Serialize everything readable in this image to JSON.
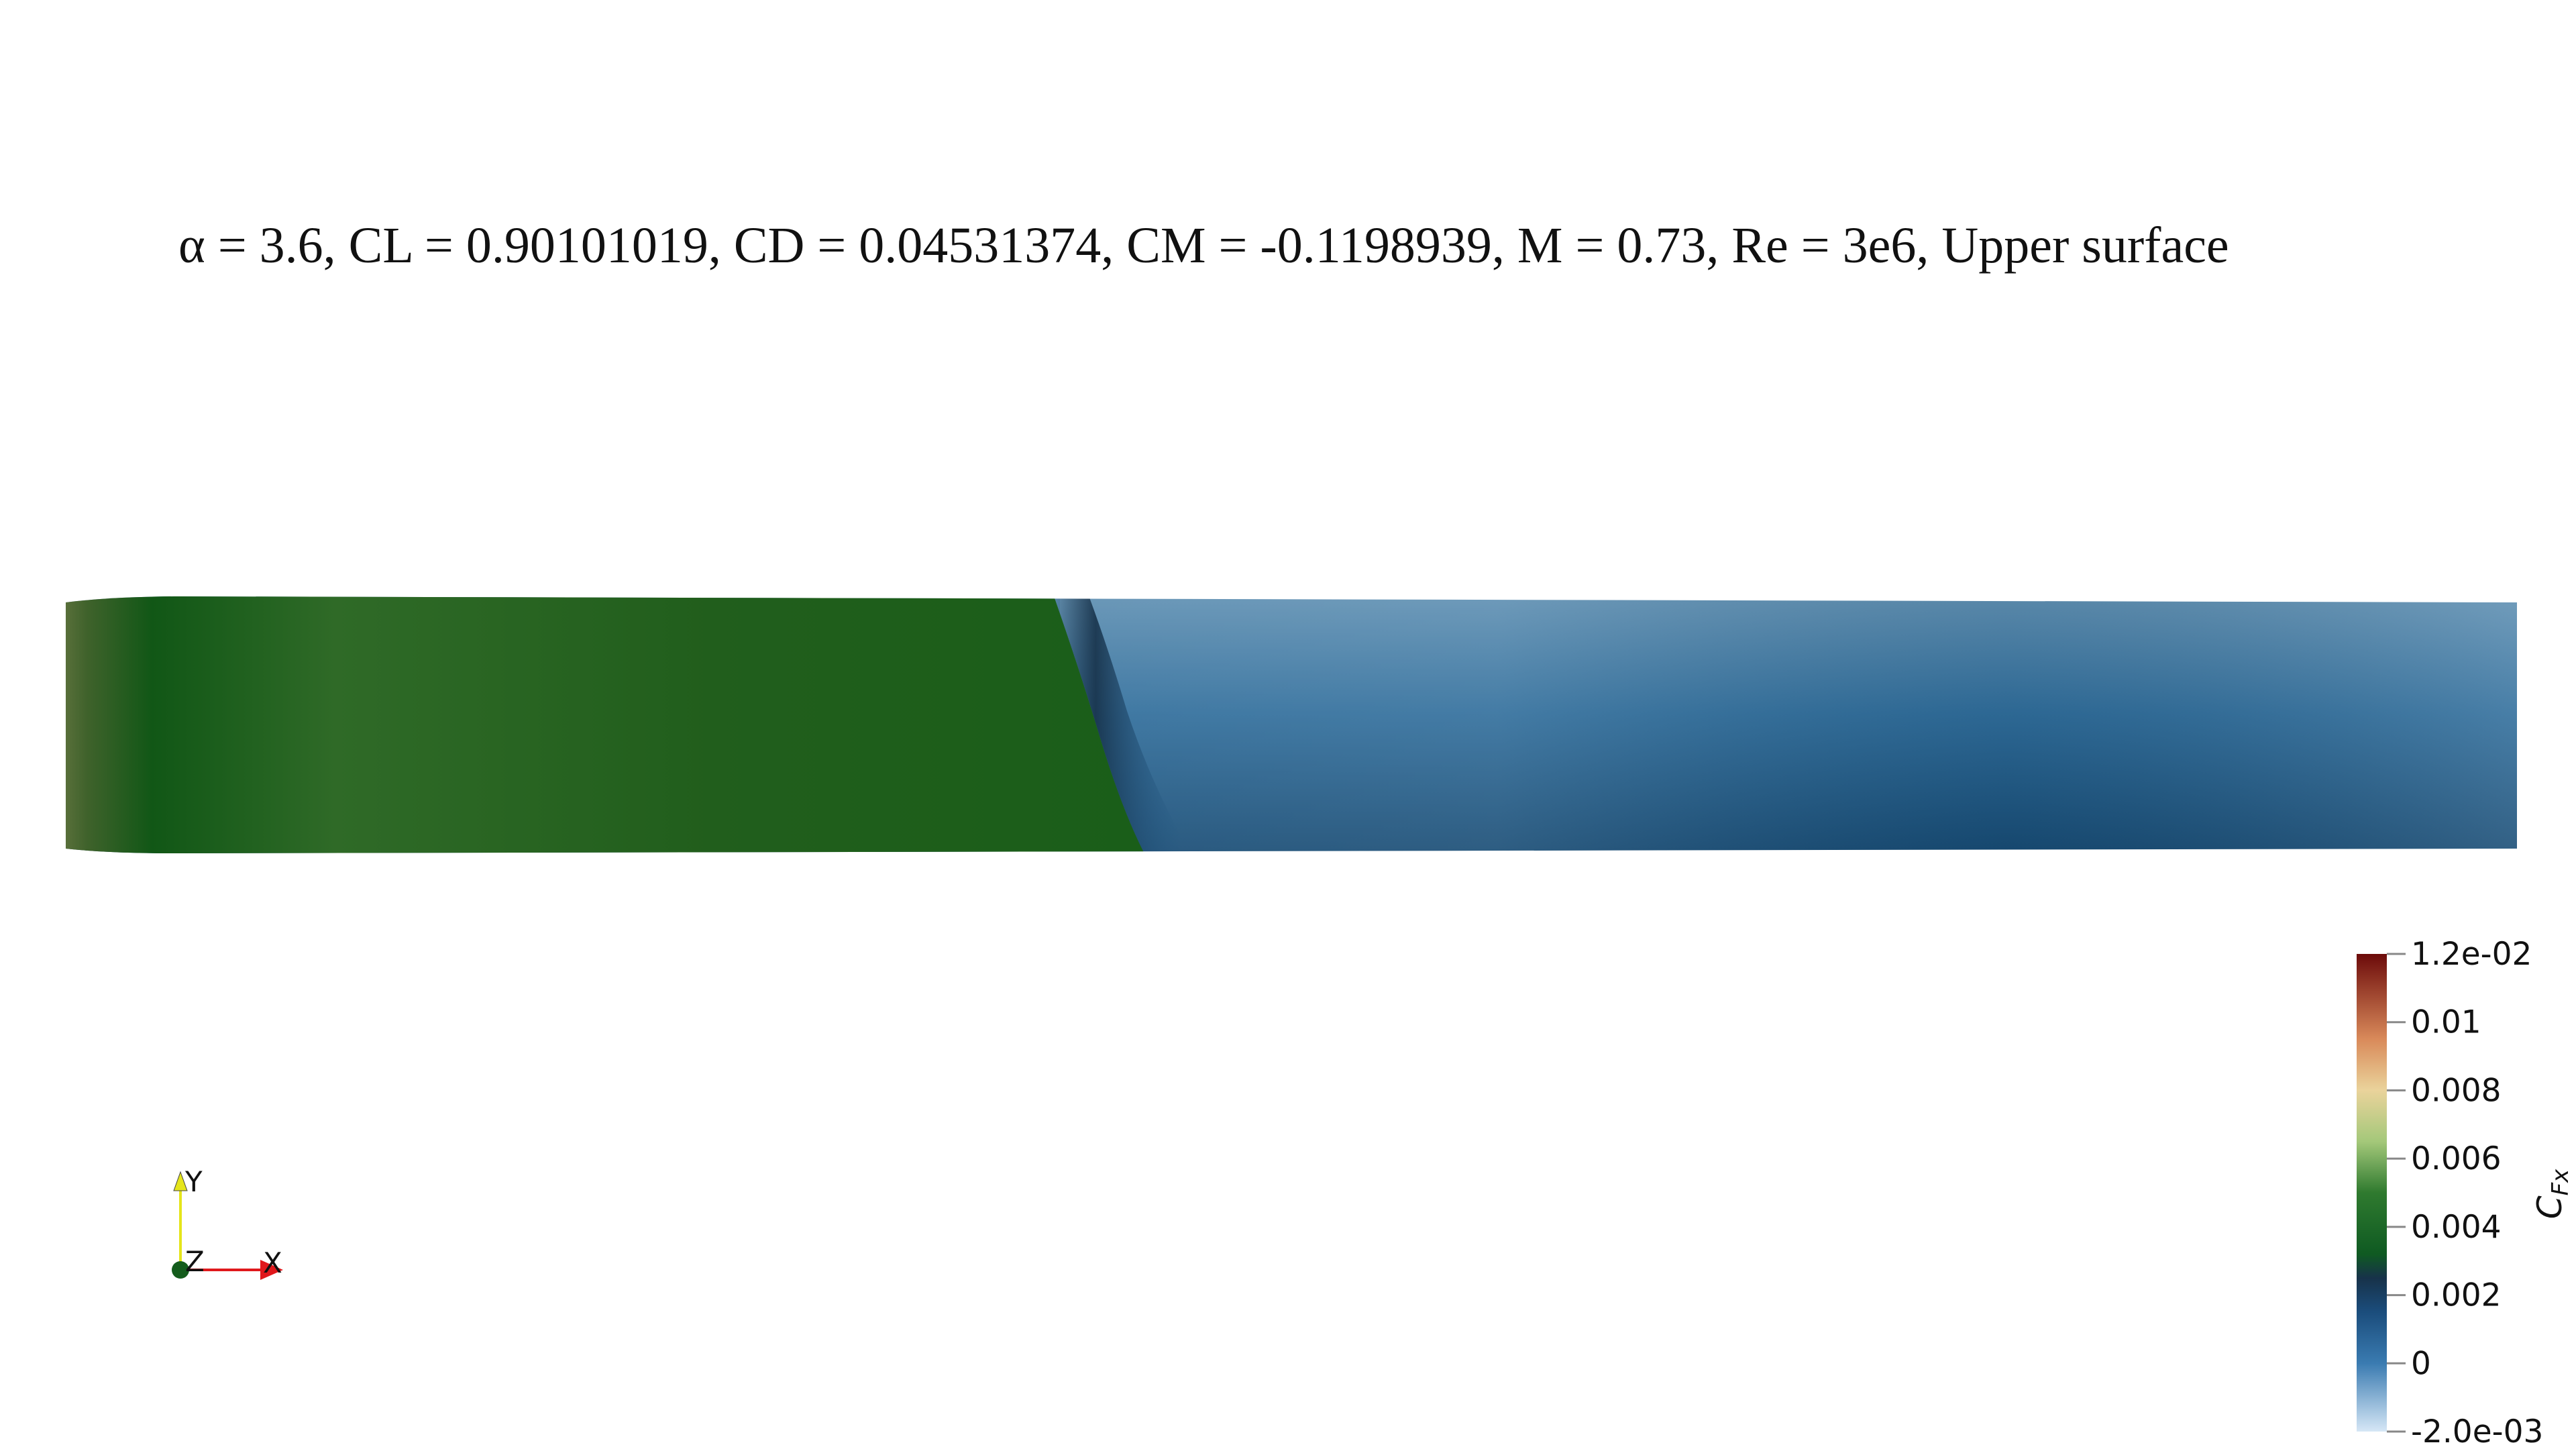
{
  "title": "α = 3.6, CL = 0.90101019, CD = 0.04531374, CM = -0.1198939, M = 0.73, Re = 3e6, Upper surface",
  "colorbar": {
    "title_main": "C",
    "title_sub": "Fx",
    "range": [
      -0.002,
      0.012
    ],
    "ticks": [
      {
        "value": 0.012,
        "label": "1.2e-02"
      },
      {
        "value": 0.01,
        "label": "0.01"
      },
      {
        "value": 0.008,
        "label": "0.008"
      },
      {
        "value": 0.006,
        "label": "0.006"
      },
      {
        "value": 0.004,
        "label": "0.004"
      },
      {
        "value": 0.002,
        "label": "0.002"
      },
      {
        "value": 0,
        "label": "0"
      },
      {
        "value": -0.002,
        "label": "-2.0e-03"
      }
    ],
    "colors": [
      {
        "value": -0.002,
        "color": "#d6e7f6"
      },
      {
        "value": 0.0,
        "color": "#3a7bb1"
      },
      {
        "value": 0.0015,
        "color": "#1b4d7c"
      },
      {
        "value": 0.0025,
        "color": "#17324a"
      },
      {
        "value": 0.0032,
        "color": "#0f5a22"
      },
      {
        "value": 0.005,
        "color": "#2f7a2f"
      },
      {
        "value": 0.0065,
        "color": "#a4c87a"
      },
      {
        "value": 0.008,
        "color": "#ead39b"
      },
      {
        "value": 0.0095,
        "color": "#d98a5a"
      },
      {
        "value": 0.012,
        "color": "#6c0a0a"
      }
    ]
  },
  "triad": {
    "x_label": "X",
    "y_label": "Y",
    "z_label": "Z",
    "x_color": "#e0181c",
    "y_color": "#e5e51b",
    "z_color": "#145c1c"
  },
  "surface_colors": {
    "leading_edge": "#586f3a",
    "green_dark": "#115716",
    "green_mid": "#2f6a27",
    "green_main": "#1f5f1b",
    "shock": "#17324a",
    "blue_light": "#5e8fb2",
    "blue_mid": "#2f6d9b",
    "blue_dark": "#164a73"
  }
}
